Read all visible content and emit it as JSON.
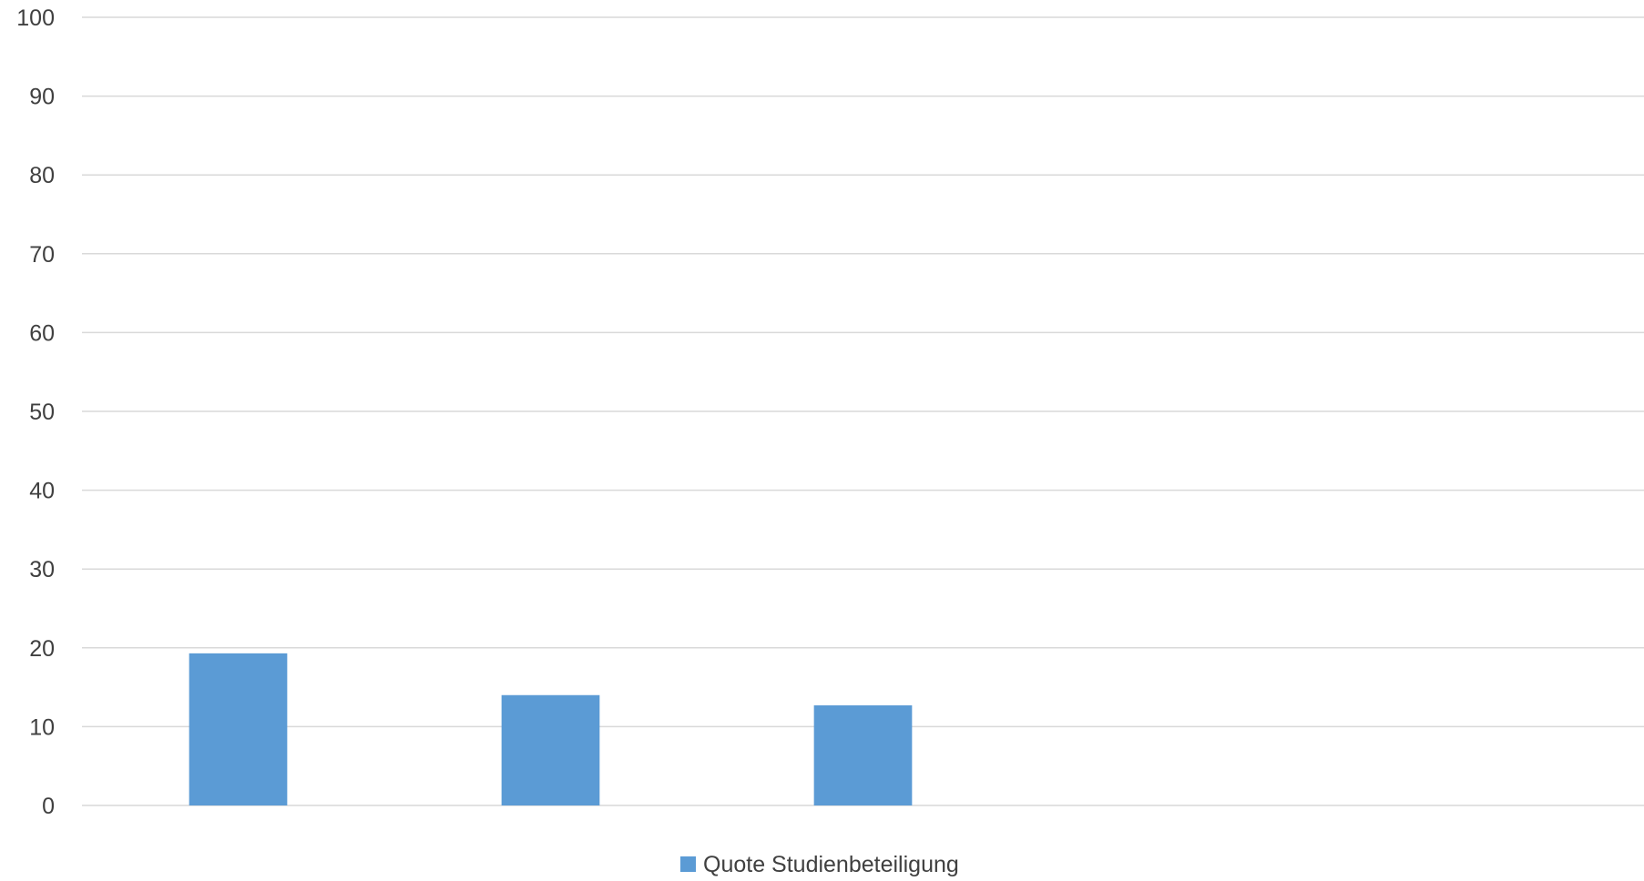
{
  "chart_data": {
    "type": "bar",
    "categories": [
      "",
      "",
      "",
      "",
      ""
    ],
    "series": [
      {
        "name": "Quote Studienbeteiligung",
        "values": [
          19.3,
          14.0,
          12.7,
          null,
          null
        ],
        "color": "#5b9bd5"
      }
    ],
    "title": "",
    "xlabel": "",
    "ylabel": "",
    "ylim": [
      0,
      100
    ],
    "yticks": [
      "0",
      "10",
      "20",
      "30",
      "40",
      "50",
      "60",
      "70",
      "80",
      "90",
      "100"
    ],
    "grid": true,
    "legend_position": "bottom"
  },
  "colors": {
    "gridline": "#d9d9d9",
    "text": "#404040"
  }
}
